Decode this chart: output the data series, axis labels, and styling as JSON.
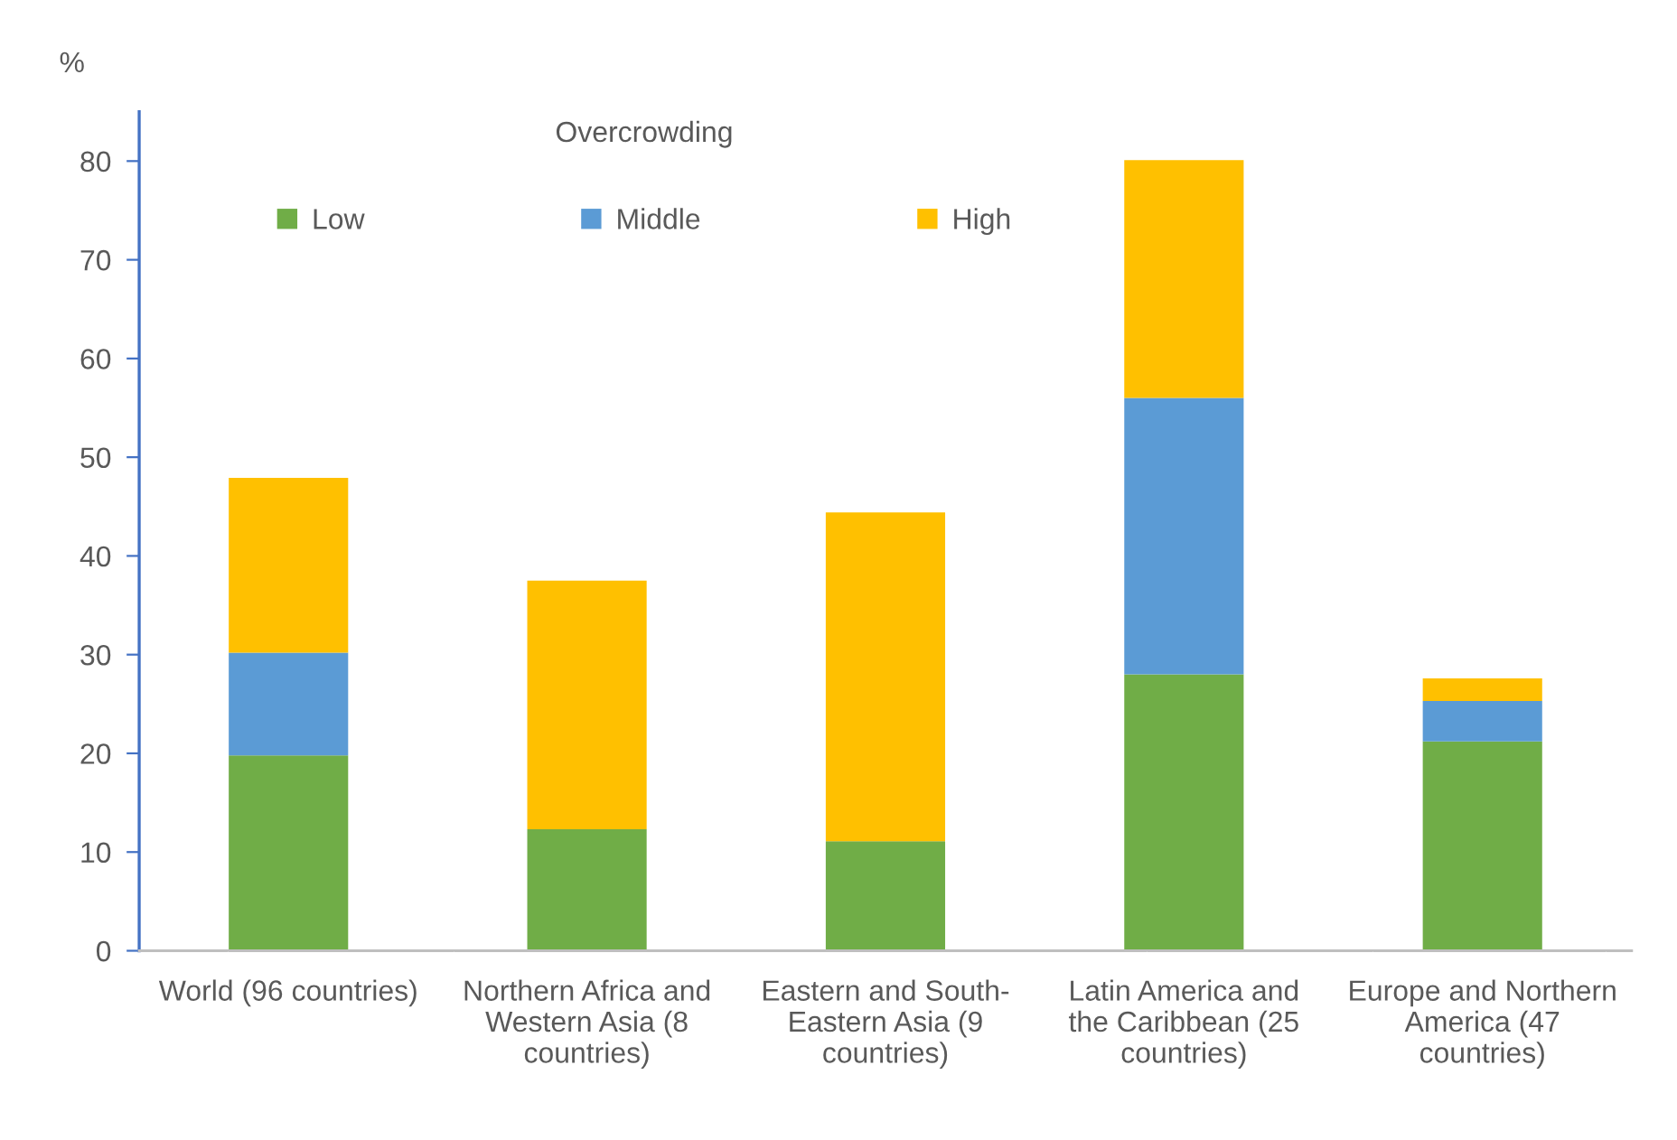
{
  "chart_data": {
    "type": "bar",
    "stacked": true,
    "legend_title": "Overcrowding",
    "ylabel": "%",
    "categories": [
      "World (96 countries)",
      "Northern Africa and\nWestern Asia (8\ncountries)",
      "Eastern and South-\nEastern Asia (9\ncountries)",
      "Latin America and\nthe Caribbean (25\ncountries)",
      "Europe and Northern\nAmerica (47\ncountries)"
    ],
    "series": [
      {
        "name": "Low",
        "color": "#70ad47",
        "values": [
          19.8,
          12.3,
          11.1,
          28.0,
          21.2
        ]
      },
      {
        "name": "Middle",
        "color": "#5b9bd5",
        "values": [
          10.4,
          null,
          null,
          28.0,
          4.1
        ]
      },
      {
        "name": "High",
        "color": "#ffc000",
        "values": [
          17.7,
          25.2,
          33.3,
          24.1,
          2.3
        ]
      }
    ],
    "ylim": [
      0,
      85
    ],
    "yticks": [
      0,
      10,
      20,
      30,
      40,
      50,
      60,
      70,
      80
    ],
    "grid": false,
    "legend": "top left"
  }
}
